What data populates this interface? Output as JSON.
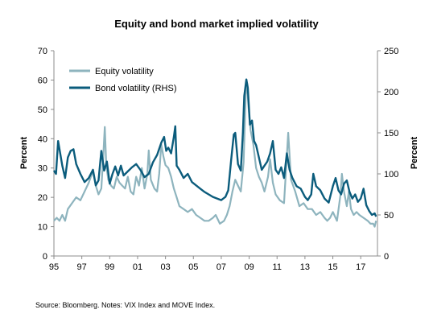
{
  "chart_data": {
    "type": "line",
    "title": "Equity and bond market implied volatility",
    "ylabel": "Percent",
    "y2label": "Percent",
    "ylim": [
      0,
      70
    ],
    "y2lim": [
      0,
      250
    ],
    "xlim": [
      1995,
      2018.2
    ],
    "grid": false,
    "legend_position": "top-left",
    "yticks": [
      "0",
      "10",
      "20",
      "30",
      "40",
      "50",
      "60",
      "70"
    ],
    "y2ticks": [
      "0",
      "50",
      "100",
      "150",
      "200",
      "250"
    ],
    "xticks": [
      {
        "value": 1995,
        "label": "95"
      },
      {
        "value": 1997,
        "label": "97"
      },
      {
        "value": 1999,
        "label": "99"
      },
      {
        "value": 2001,
        "label": "01"
      },
      {
        "value": 2003,
        "label": "03"
      },
      {
        "value": 2005,
        "label": "05"
      },
      {
        "value": 2007,
        "label": "07"
      },
      {
        "value": 2009,
        "label": "09"
      },
      {
        "value": 2011,
        "label": "11"
      },
      {
        "value": 2013,
        "label": "13"
      },
      {
        "value": 2015,
        "label": "15"
      },
      {
        "value": 2017,
        "label": "17"
      }
    ],
    "series": [
      {
        "name": "Equity volatility",
        "axis": "left",
        "color": "#8eb4be",
        "x": [
          1995.0,
          1995.2,
          1995.4,
          1995.6,
          1995.8,
          1996.0,
          1996.3,
          1996.6,
          1996.9,
          1997.2,
          1997.5,
          1997.8,
          1998.0,
          1998.2,
          1998.4,
          1998.55,
          1998.65,
          1998.75,
          1998.9,
          1999.1,
          1999.3,
          1999.5,
          1999.7,
          1999.9,
          2000.1,
          2000.3,
          2000.5,
          2000.7,
          2000.9,
          2001.1,
          2001.3,
          2001.5,
          2001.7,
          2001.8,
          2001.95,
          2002.2,
          2002.4,
          2002.55,
          2002.7,
          2002.85,
          2003.0,
          2003.2,
          2003.4,
          2003.6,
          2003.8,
          2004.0,
          2004.3,
          2004.6,
          2004.9,
          2005.2,
          2005.5,
          2005.8,
          2006.1,
          2006.4,
          2006.6,
          2006.9,
          2007.2,
          2007.4,
          2007.6,
          2007.8,
          2008.0,
          2008.2,
          2008.4,
          2008.6,
          2008.75,
          2008.85,
          2008.95,
          2009.1,
          2009.3,
          2009.5,
          2009.7,
          2009.9,
          2010.1,
          2010.35,
          2010.5,
          2010.7,
          2010.9,
          2011.2,
          2011.5,
          2011.65,
          2011.8,
          2012.0,
          2012.3,
          2012.6,
          2012.9,
          2013.2,
          2013.5,
          2013.8,
          2014.1,
          2014.4,
          2014.6,
          2014.8,
          2015.0,
          2015.3,
          2015.55,
          2015.65,
          2015.8,
          2016.0,
          2016.15,
          2016.3,
          2016.5,
          2016.7,
          2016.9,
          2017.2,
          2017.5,
          2017.7,
          2017.9,
          2018.0,
          2018.1
        ],
        "values": [
          12,
          13,
          12,
          14,
          12,
          16,
          18,
          20,
          19,
          22,
          25,
          29,
          24,
          21,
          23,
          35,
          44,
          31,
          26,
          24,
          23,
          27,
          25,
          24,
          23,
          27,
          22,
          21,
          27,
          24,
          30,
          23,
          28,
          36,
          26,
          23,
          22,
          28,
          38,
          34,
          31,
          30,
          27,
          23,
          20,
          17,
          16,
          15,
          16,
          14,
          13,
          12,
          12,
          13,
          14,
          11,
          12,
          14,
          17,
          22,
          26,
          24,
          22,
          32,
          55,
          59,
          51,
          43,
          38,
          30,
          27,
          25,
          22,
          27,
          33,
          25,
          21,
          19,
          18,
          30,
          42,
          26,
          22,
          17,
          18,
          16,
          16,
          14,
          15,
          13,
          12,
          13,
          15,
          12,
          21,
          28,
          22,
          17,
          22,
          16,
          14,
          15,
          14,
          13,
          12,
          11,
          11,
          10,
          12
        ]
      },
      {
        "name": "Bond volatility (RHS)",
        "axis": "right",
        "color": "#0b5c7c",
        "x": [
          1995.0,
          1995.15,
          1995.3,
          1995.45,
          1995.6,
          1995.8,
          1996.0,
          1996.2,
          1996.4,
          1996.6,
          1996.9,
          1997.2,
          1997.5,
          1997.8,
          1998.0,
          1998.2,
          1998.4,
          1998.6,
          1998.8,
          1999.0,
          1999.2,
          1999.4,
          1999.6,
          1999.8,
          2000.0,
          2000.3,
          2000.6,
          2000.9,
          2001.2,
          2001.5,
          2001.8,
          2002.1,
          2002.4,
          2002.7,
          2002.9,
          2003.05,
          2003.2,
          2003.4,
          2003.6,
          2003.7,
          2003.8,
          2004.0,
          2004.3,
          2004.6,
          2004.9,
          2005.2,
          2005.5,
          2005.8,
          2006.1,
          2006.4,
          2006.7,
          2007.0,
          2007.3,
          2007.5,
          2007.7,
          2007.9,
          2008.0,
          2008.2,
          2008.4,
          2008.55,
          2008.65,
          2008.8,
          2008.9,
          2009.05,
          2009.2,
          2009.35,
          2009.5,
          2009.7,
          2009.9,
          2010.1,
          2010.3,
          2010.5,
          2010.7,
          2010.9,
          2011.1,
          2011.3,
          2011.5,
          2011.7,
          2011.9,
          2012.1,
          2012.4,
          2012.7,
          2013.0,
          2013.2,
          2013.45,
          2013.6,
          2013.8,
          2014.1,
          2014.4,
          2014.7,
          2015.0,
          2015.2,
          2015.4,
          2015.6,
          2015.8,
          2016.0,
          2016.2,
          2016.4,
          2016.6,
          2016.8,
          2017.0,
          2017.2,
          2017.4,
          2017.6,
          2017.8,
          2018.0,
          2018.1
        ],
        "values": [
          104,
          100,
          140,
          125,
          110,
          95,
          120,
          128,
          130,
          112,
          100,
          90,
          95,
          105,
          86,
          92,
          128,
          104,
          115,
          88,
          100,
          109,
          98,
          110,
          98,
          103,
          108,
          112,
          105,
          96,
          100,
          114,
          123,
          138,
          145,
          128,
          132,
          125,
          145,
          158,
          110,
          105,
          95,
          100,
          90,
          86,
          82,
          78,
          75,
          72,
          70,
          68,
          72,
          80,
          116,
          148,
          150,
          112,
          104,
          150,
          195,
          215,
          205,
          160,
          165,
          140,
          135,
          120,
          105,
          110,
          115,
          125,
          140,
          105,
          100,
          108,
          95,
          125,
          105,
          95,
          85,
          82,
          72,
          68,
          75,
          100,
          85,
          80,
          70,
          65,
          85,
          95,
          80,
          75,
          88,
          92,
          78,
          70,
          75,
          66,
          70,
          82,
          62,
          55,
          50,
          52,
          48
        ]
      }
    ]
  },
  "source_note": "Source: Bloomberg.  Notes:  VIX Index and MOVE Index."
}
